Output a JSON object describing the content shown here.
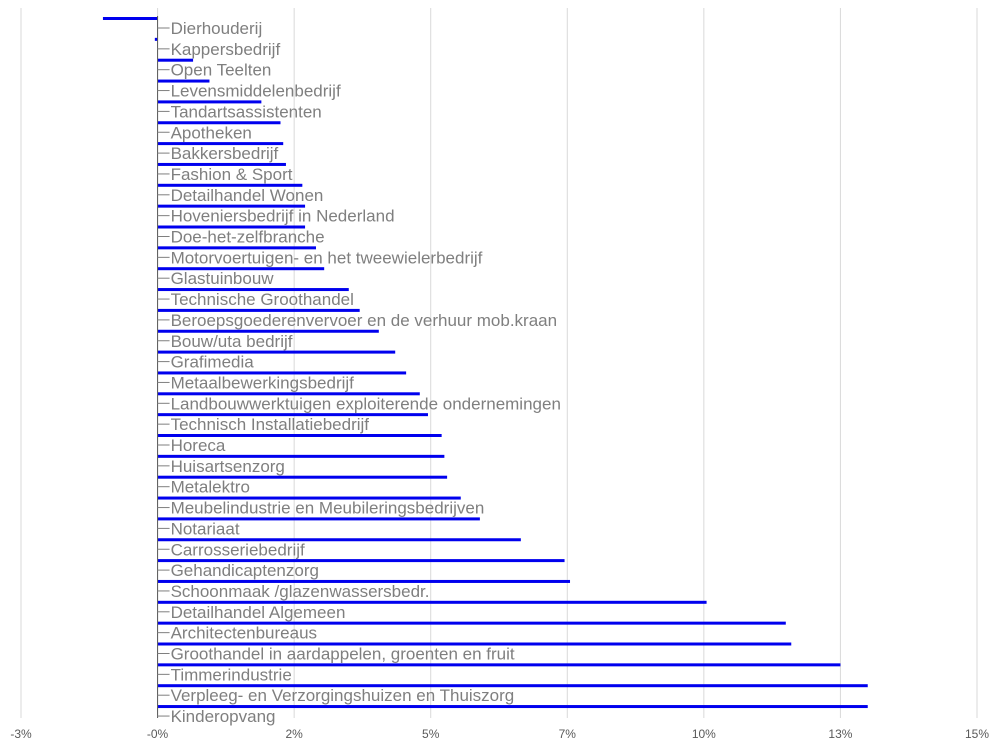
{
  "chart_data": {
    "type": "bar",
    "orientation": "horizontal",
    "bar_color": "#0000ee",
    "grid_color": "#d9d9d9",
    "label_color": "#7f7f7f",
    "categories": [
      "Dierhouderij",
      "Kappersbedrijf",
      "Open Teelten",
      "Levensmiddelenbedrijf",
      "Tandartsassistenten",
      "Apotheken",
      "Bakkersbedrijf",
      "Fashion & Sport",
      "Detailhandel Wonen",
      "Hoveniersbedrijf in Nederland",
      "Doe-het-zelfbranche",
      "Motorvoertuigen- en het tweewielerbedrijf",
      "Glastuinbouw",
      "Technische Groothandel",
      "Beroepsgoederenvervoer en de verhuur mob.kraan",
      "Bouw/uta bedrijf",
      "Grafimedia",
      "Metaalbewerkingsbedrijf",
      "Landbouwwerktuigen exploiterende ondernemingen",
      "Technisch Installatiebedrijf",
      "Horeca",
      "Huisartsenzorg",
      "Metalektro",
      "Meubelindustrie en Meubileringsbedrijven",
      "Notariaat",
      "Carrosseriebedrijf",
      "Gehandicaptenzorg",
      "Schoonmaak /glazenwassersbedr.",
      "Detailhandel Algemeen",
      "Architectenbureaus",
      "Groothandel in aardappelen, groenten en fruit",
      "Timmerindustrie",
      "Verpleeg- en Verzorgingshuizen en Thuiszorg",
      "Kinderopvang"
    ],
    "values": [
      -1.0,
      -0.05,
      0.65,
      0.95,
      1.9,
      2.25,
      2.3,
      2.35,
      2.65,
      2.7,
      2.7,
      2.9,
      3.05,
      3.5,
      3.7,
      4.05,
      4.35,
      4.55,
      4.8,
      4.95,
      5.2,
      5.25,
      5.3,
      5.55,
      5.9,
      6.65,
      7.45,
      7.55,
      10.05,
      11.5,
      11.6,
      12.5,
      13.0,
      13.0
    ],
    "xlim": [
      -2.5,
      15.0
    ],
    "x_ticks": [
      -2.5,
      0,
      2.5,
      5.0,
      7.5,
      10.0,
      12.5,
      15.0
    ],
    "x_tick_labels": [
      "-3%",
      "-0%",
      "2%",
      "5%",
      "7%",
      "10%",
      "13%",
      "15%"
    ],
    "grid": true
  }
}
